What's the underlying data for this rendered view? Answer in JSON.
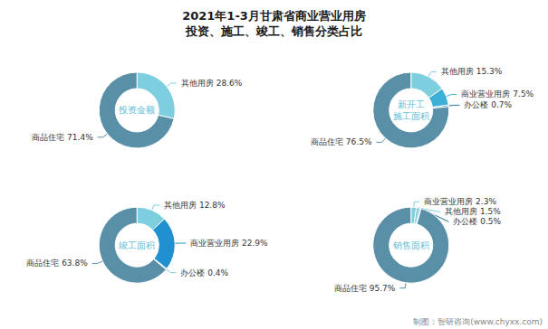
{
  "title": "2021年1-3月甘肃省商业营业用房\n投资、施工、竣工、销售分类占比",
  "annotations": [
    "制图：智研咨询(www.chyxx.com)"
  ],
  "chart_data": [
    {
      "type": "pie",
      "title": "投资金额",
      "categories": [
        "其他用房",
        "商品住宅"
      ],
      "values": [
        28.6,
        71.4
      ],
      "value_labels": [
        "其他用房 28.6%",
        "商品住宅 71.4%"
      ],
      "colors": [
        "#7dcfe0",
        "#5a8fa8"
      ],
      "data_labels": true
    },
    {
      "type": "pie",
      "title": "新开工\n施工面积",
      "categories": [
        "其他用房",
        "商业营业用房",
        "办公楼",
        "商品住宅"
      ],
      "values": [
        15.3,
        7.5,
        0.7,
        76.5
      ],
      "value_labels": [
        "其他用房 15.3%",
        "商业营业用房 7.5%",
        "办公楼 0.7%",
        "商品住宅 76.5%"
      ],
      "colors": [
        "#7dcfe0",
        "#3db0d8",
        "#2070a0",
        "#5a8fa8"
      ],
      "data_labels": true
    },
    {
      "type": "pie",
      "title": "竣工面积",
      "categories": [
        "其他用房",
        "商业营业用房",
        "办公楼",
        "商品住宅"
      ],
      "values": [
        12.8,
        22.9,
        0.4,
        63.8
      ],
      "value_labels": [
        "其他用房 12.8%",
        "商业营业用房 22.9%",
        "办公楼 0.4%",
        "商品住宅 63.8%"
      ],
      "colors": [
        "#7dcfe0",
        "#2090d0",
        "#7dcfe0",
        "#5a8fa8"
      ],
      "data_labels": true
    },
    {
      "type": "pie",
      "title": "销售面积",
      "categories": [
        "商业营业用房",
        "其他用房",
        "办公楼",
        "商品住宅"
      ],
      "values": [
        2.3,
        1.5,
        0.5,
        95.7
      ],
      "value_labels": [
        "商业营业用房 2.3%",
        "其他用房 1.5%",
        "办公楼 0.5%",
        "商品住宅 95.7%"
      ],
      "colors": [
        "#7dcfe0",
        "#7dcfe0",
        "#2070a0",
        "#5a8fa8"
      ],
      "data_labels": true
    }
  ]
}
